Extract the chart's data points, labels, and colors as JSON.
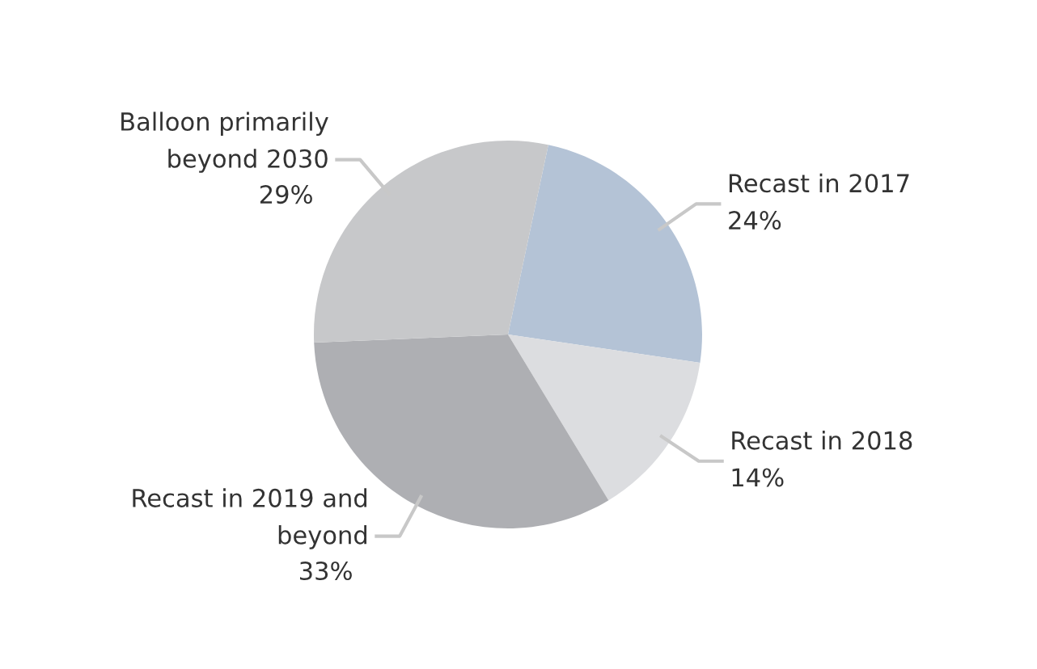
{
  "chart_data": {
    "type": "pie",
    "categories": [
      "Recast in 2017",
      "Recast in 2018",
      "Recast in 2019 and\nbeyond",
      "Balloon primarily\nbeyond 2030"
    ],
    "values": [
      24,
      14,
      33,
      29
    ],
    "value_labels": [
      "24%",
      "14%",
      "33%",
      "29%"
    ],
    "colors": [
      "#b4c3d6",
      "#dcdde0",
      "#aeafb3",
      "#c7c8ca"
    ],
    "legend": false
  }
}
